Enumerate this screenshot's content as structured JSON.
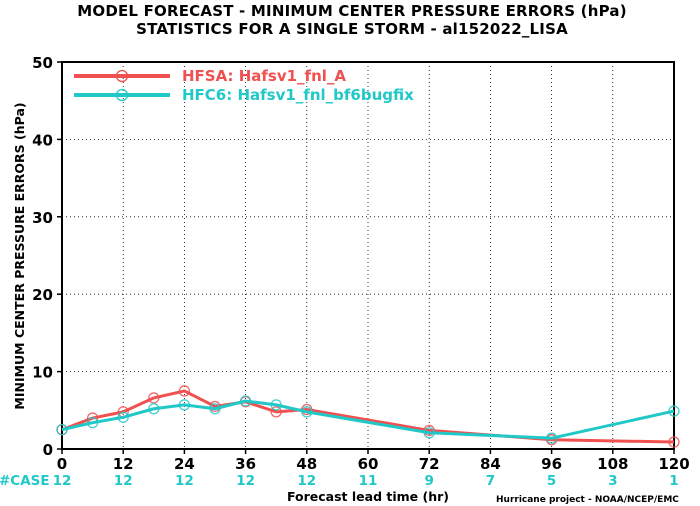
{
  "chart_data": {
    "type": "line",
    "title_line1": "MODEL FORECAST - MINIMUM CENTER PRESSURE ERRORS (hPa)",
    "title_line2": "STATISTICS FOR A SINGLE STORM - al152022_LISA",
    "xlabel": "Forecast lead time (hr)",
    "ylabel": "MINIMUM CENTER PRESSURE ERRORS (hPa)",
    "xlim": [
      0,
      120
    ],
    "ylim": [
      0,
      50
    ],
    "xticks": [
      "0",
      "12",
      "24",
      "36",
      "48",
      "60",
      "72",
      "84",
      "96",
      "108",
      "120"
    ],
    "yticks": [
      "0",
      "10",
      "20",
      "30",
      "40",
      "50"
    ],
    "case_label": "#CASE",
    "cases": [
      "12",
      "12",
      "12",
      "12",
      "12",
      "11",
      "9",
      "7",
      "5",
      "3",
      "1"
    ],
    "series": [
      {
        "name": "HFSA: Hafsv1_fnl_A",
        "color": "#f05050",
        "x": [
          0,
          6,
          12,
          18,
          24,
          30,
          36,
          42,
          48,
          72,
          96,
          120
        ],
        "y": [
          2.5,
          4.0,
          4.8,
          6.6,
          7.5,
          5.5,
          6.1,
          4.8,
          5.1,
          2.4,
          1.2,
          0.9
        ]
      },
      {
        "name": "HFC6: Hafsv1_fnl_bf6bugfix",
        "color": "#20c8c8",
        "x": [
          0,
          6,
          12,
          18,
          24,
          30,
          36,
          42,
          48,
          72,
          96,
          120
        ],
        "y": [
          2.5,
          3.4,
          4.1,
          5.2,
          5.7,
          5.2,
          6.2,
          5.7,
          4.8,
          2.1,
          1.4,
          4.9
        ]
      }
    ],
    "legend_position": "top-left",
    "credit": "Hurricane project - NOAA/NCEP/EMC"
  }
}
